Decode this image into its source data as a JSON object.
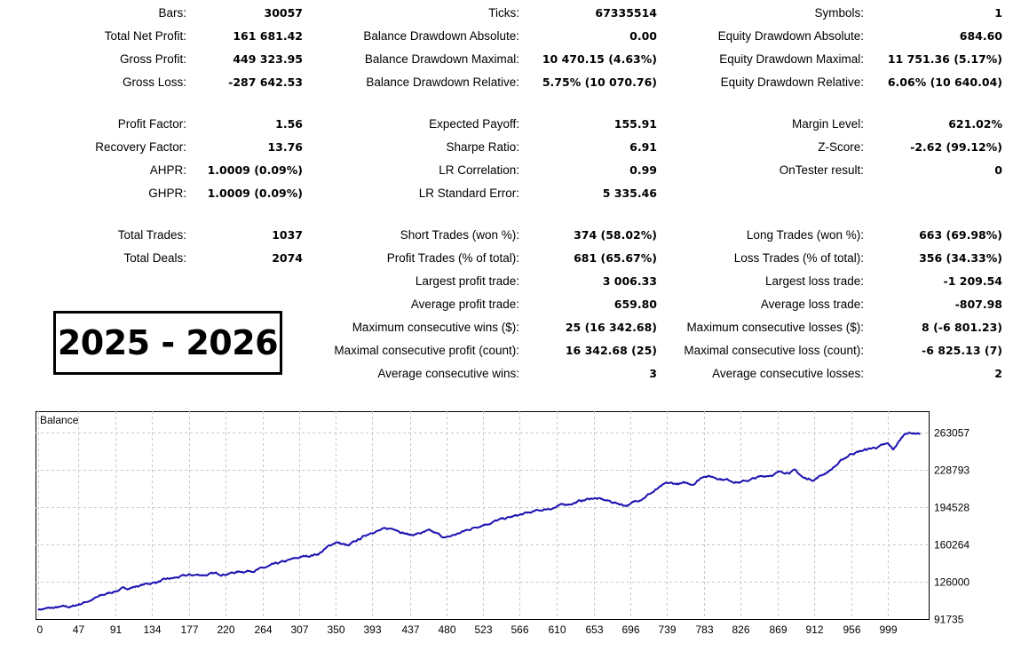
{
  "stats": {
    "groups": [
      [
        [
          [
            "Bars:",
            "30057"
          ],
          [
            "Ticks:",
            "67335514"
          ],
          [
            "Symbols:",
            "1"
          ]
        ],
        [
          [
            "Total Net Profit:",
            "161 681.42"
          ],
          [
            "Balance Drawdown Absolute:",
            "0.00"
          ],
          [
            "Equity Drawdown Absolute:",
            "684.60"
          ]
        ],
        [
          [
            "Gross Profit:",
            "449 323.95"
          ],
          [
            "Balance Drawdown Maximal:",
            "10 470.15 (4.63%)"
          ],
          [
            "Equity Drawdown Maximal:",
            "11 751.36 (5.17%)"
          ]
        ],
        [
          [
            "Gross Loss:",
            "-287 642.53"
          ],
          [
            "Balance Drawdown Relative:",
            "5.75% (10 070.76)"
          ],
          [
            "Equity Drawdown Relative:",
            "6.06% (10 640.04)"
          ]
        ]
      ],
      [
        [
          [
            "Profit Factor:",
            "1.56"
          ],
          [
            "Expected Payoff:",
            "155.91"
          ],
          [
            "Margin Level:",
            "621.02%"
          ]
        ],
        [
          [
            "Recovery Factor:",
            "13.76"
          ],
          [
            "Sharpe Ratio:",
            "6.91"
          ],
          [
            "Z-Score:",
            "-2.62 (99.12%)"
          ]
        ],
        [
          [
            "AHPR:",
            "1.0009 (0.09%)"
          ],
          [
            "LR Correlation:",
            "0.99"
          ],
          [
            "OnTester result:",
            "0"
          ]
        ],
        [
          [
            "GHPR:",
            "1.0009 (0.09%)"
          ],
          [
            "LR Standard Error:",
            "5 335.46"
          ],
          null
        ]
      ],
      [
        [
          [
            "Total Trades:",
            "1037"
          ],
          [
            "Short Trades (won %):",
            "374 (58.02%)"
          ],
          [
            "Long Trades (won %):",
            "663 (69.98%)"
          ]
        ],
        [
          [
            "Total Deals:",
            "2074"
          ],
          [
            "Profit Trades (% of total):",
            "681 (65.67%)"
          ],
          [
            "Loss Trades (% of total):",
            "356 (34.33%)"
          ]
        ],
        [
          null,
          [
            "Largest profit trade:",
            "3 006.33"
          ],
          [
            "Largest loss trade:",
            "-1 209.54"
          ]
        ],
        [
          null,
          [
            "Average profit trade:",
            "659.80"
          ],
          [
            "Average loss trade:",
            "-807.98"
          ]
        ],
        [
          null,
          [
            "Maximum consecutive wins ($):",
            "25 (16 342.68)"
          ],
          [
            "Maximum consecutive losses ($):",
            "8 (-6 801.23)"
          ]
        ],
        [
          null,
          [
            "Maximal consecutive profit (count):",
            "16 342.68 (25)"
          ],
          [
            "Maximal consecutive loss (count):",
            "-6 825.13 (7)"
          ]
        ],
        [
          null,
          [
            "Average consecutive wins:",
            "3"
          ],
          [
            "Average consecutive losses:",
            "2"
          ]
        ]
      ]
    ]
  },
  "period_label": "2025 - 2026",
  "chart_data": {
    "type": "line",
    "title": "Balance",
    "line_color": "#1c10b0",
    "grid": true,
    "xlim": [
      0,
      1037
    ],
    "ylim": [
      91735,
      263057
    ],
    "x_ticks": [
      "0",
      "47",
      "91",
      "134",
      "177",
      "220",
      "264",
      "307",
      "350",
      "393",
      "437",
      "480",
      "523",
      "566",
      "610",
      "653",
      "696",
      "739",
      "783",
      "826",
      "869",
      "912",
      "956",
      "999"
    ],
    "y_ticks": [
      "263057",
      "228793",
      "194528",
      "160264",
      "126000",
      "91735"
    ],
    "series": [
      {
        "name": "Balance",
        "points": [
          [
            0,
            100700
          ],
          [
            40,
            103000
          ],
          [
            91,
            117800
          ],
          [
            134,
            125000
          ],
          [
            177,
            131700
          ],
          [
            220,
            133500
          ],
          [
            264,
            138000
          ],
          [
            307,
            148000
          ],
          [
            330,
            152000
          ],
          [
            350,
            162700
          ],
          [
            365,
            158500
          ],
          [
            393,
            172500
          ],
          [
            420,
            175000
          ],
          [
            437,
            169000
          ],
          [
            460,
            172000
          ],
          [
            480,
            166000
          ],
          [
            523,
            179000
          ],
          [
            566,
            187000
          ],
          [
            610,
            195000
          ],
          [
            653,
            203000
          ],
          [
            690,
            196500
          ],
          [
            696,
            197000
          ],
          [
            739,
            215700
          ],
          [
            770,
            216000
          ],
          [
            783,
            224000
          ],
          [
            826,
            217500
          ],
          [
            869,
            226000
          ],
          [
            890,
            228000
          ],
          [
            900,
            221000
          ],
          [
            912,
            220000
          ],
          [
            930,
            228000
          ],
          [
            956,
            244000
          ],
          [
            999,
            252000
          ],
          [
            1005,
            247000
          ],
          [
            1020,
            263000
          ],
          [
            1037,
            262600
          ]
        ]
      }
    ]
  }
}
